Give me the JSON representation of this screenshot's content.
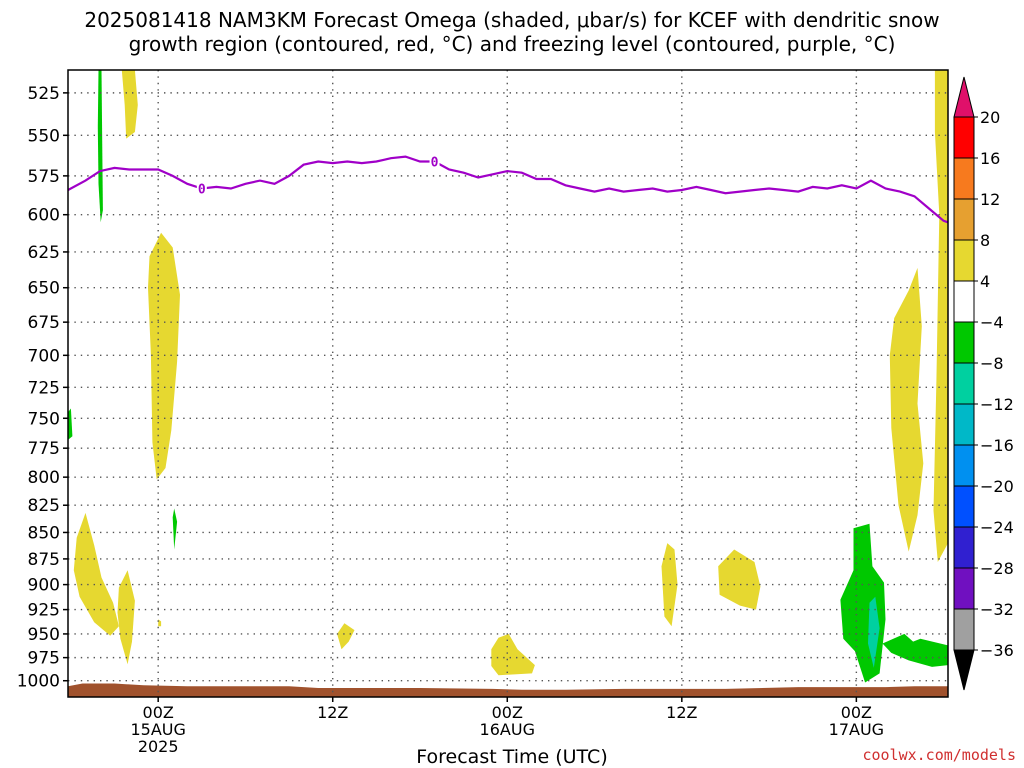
{
  "title": {
    "line1": "2025081418 NAM3KM Forecast Omega (shaded, μbar/s) for KCEF with dendritic snow",
    "line2": "growth region (contoured, red, °C) and freezing level (contoured, purple, °C)"
  },
  "credit": "coolwx.com/models",
  "chart_data": {
    "type": "heatmap",
    "title": "2025081418 NAM3KM Forecast Omega (shaded, μbar/s) for KCEF with dendritic snow growth region (contoured, red, °C) and freezing level (contoured, purple, °C)",
    "xlabel": "Forecast Time (UTC)",
    "ylabel": "",
    "x_ticks": [
      {
        "hour": 6,
        "lines": [
          "00Z",
          "15AUG",
          "2025"
        ]
      },
      {
        "hour": 18,
        "lines": [
          "12Z"
        ]
      },
      {
        "hour": 30,
        "lines": [
          "00Z",
          "16AUG"
        ]
      },
      {
        "hour": 42,
        "lines": [
          "12Z"
        ]
      },
      {
        "hour": 54,
        "lines": [
          "00Z",
          "17AUG"
        ]
      }
    ],
    "xlim": [
      -0.2,
      60.3
    ],
    "y_ticks": [
      525,
      550,
      575,
      600,
      625,
      650,
      675,
      700,
      725,
      750,
      775,
      800,
      825,
      850,
      875,
      900,
      925,
      950,
      975,
      1000
    ],
    "ylim": [
      512,
      1018
    ],
    "y_scale": "log",
    "grid": true,
    "colorbar": {
      "levels": [
        20,
        16,
        12,
        8,
        4,
        -4,
        -8,
        -12,
        -16,
        -20,
        -24,
        -28,
        -32,
        -36
      ],
      "colors": [
        "#ff0000",
        "#f77a1e",
        "#e6a030",
        "#e6d830",
        "#ffffff",
        "#00c800",
        "#00d0a0",
        "#00b8c8",
        "#0090f0",
        "#0050ff",
        "#3020d0",
        "#7010c0",
        "#a000b8",
        "#a0a0a0"
      ],
      "top_color": "#e0106a",
      "bottom_color": "#000000"
    },
    "freezing_level": {
      "label": "0",
      "color": "#a000c8",
      "points": [
        [
          -0.2,
          584
        ],
        [
          1,
          578
        ],
        [
          2,
          572
        ],
        [
          3,
          570
        ],
        [
          4,
          571
        ],
        [
          5,
          571
        ],
        [
          6,
          571
        ],
        [
          7,
          575
        ],
        [
          8,
          580
        ],
        [
          9,
          583
        ],
        [
          10,
          582
        ],
        [
          11,
          583
        ],
        [
          12,
          580
        ],
        [
          13,
          578
        ],
        [
          14,
          580
        ],
        [
          15,
          575
        ],
        [
          16,
          568
        ],
        [
          17,
          566
        ],
        [
          18,
          567
        ],
        [
          19,
          566
        ],
        [
          20,
          567
        ],
        [
          21,
          566
        ],
        [
          22,
          564
        ],
        [
          23,
          563
        ],
        [
          24,
          566
        ],
        [
          25,
          566
        ],
        [
          26,
          571
        ],
        [
          27,
          573
        ],
        [
          28,
          576
        ],
        [
          29,
          574
        ],
        [
          30,
          572
        ],
        [
          31,
          573
        ],
        [
          32,
          577
        ],
        [
          33,
          577
        ],
        [
          34,
          581
        ],
        [
          35,
          583
        ],
        [
          36,
          585
        ],
        [
          37,
          583
        ],
        [
          38,
          585
        ],
        [
          39,
          584
        ],
        [
          40,
          583
        ],
        [
          41,
          585
        ],
        [
          42,
          584
        ],
        [
          43,
          582
        ],
        [
          44,
          584
        ],
        [
          45,
          586
        ],
        [
          46,
          585
        ],
        [
          47,
          584
        ],
        [
          48,
          583
        ],
        [
          49,
          584
        ],
        [
          50,
          585
        ],
        [
          51,
          582
        ],
        [
          52,
          583
        ],
        [
          53,
          581
        ],
        [
          54,
          583
        ],
        [
          55,
          578
        ],
        [
          56,
          583
        ],
        [
          57,
          585
        ],
        [
          58,
          588
        ],
        [
          59,
          596
        ],
        [
          60,
          604
        ],
        [
          60.3,
          605
        ]
      ],
      "label_positions": [
        [
          9,
          583
        ],
        [
          25,
          566
        ]
      ]
    },
    "omega_regions": [
      {
        "category": "4 to 8",
        "color": "#e6d830",
        "points": [
          [
            3.5,
            512
          ],
          [
            4.4,
            512
          ],
          [
            4.6,
            532
          ],
          [
            4.4,
            548
          ],
          [
            3.8,
            552
          ],
          [
            3.7,
            532
          ]
        ]
      },
      {
        "category": "4 to 8",
        "color": "#e6d830",
        "points": [
          [
            5.4,
            628
          ],
          [
            6.2,
            612
          ],
          [
            7.0,
            622
          ],
          [
            7.5,
            655
          ],
          [
            7.3,
            705
          ],
          [
            6.9,
            760
          ],
          [
            6.5,
            792
          ],
          [
            5.9,
            802
          ],
          [
            5.6,
            770
          ],
          [
            5.5,
            700
          ],
          [
            5.3,
            650
          ]
        ]
      },
      {
        "category": "4 to 8",
        "color": "#e6d830",
        "points": [
          [
            0.4,
            855
          ],
          [
            1.0,
            832
          ],
          [
            1.6,
            862
          ],
          [
            2.1,
            893
          ],
          [
            2.9,
            918
          ],
          [
            3.3,
            942
          ],
          [
            2.7,
            952
          ],
          [
            1.6,
            938
          ],
          [
            0.6,
            912
          ],
          [
            0.2,
            886
          ]
        ]
      },
      {
        "category": "4 to 8",
        "color": "#e6d830",
        "points": [
          [
            3.3,
            903
          ],
          [
            3.9,
            886
          ],
          [
            4.4,
            916
          ],
          [
            4.2,
            958
          ],
          [
            3.9,
            982
          ],
          [
            3.4,
            955
          ],
          [
            3.2,
            928
          ]
        ]
      },
      {
        "category": "4 to 8",
        "color": "#e6d830",
        "points": [
          [
            6.0,
            935
          ],
          [
            6.2,
            937
          ],
          [
            6.2,
            942
          ],
          [
            6.0,
            942
          ]
        ]
      },
      {
        "category": "4 to 8",
        "color": "#e6d830",
        "points": [
          [
            18.3,
            950
          ],
          [
            18.8,
            939
          ],
          [
            19.5,
            946
          ],
          [
            19.1,
            958
          ],
          [
            18.6,
            966
          ]
        ]
      },
      {
        "category": "4 to 8",
        "color": "#e6d830",
        "points": [
          [
            28.9,
            966
          ],
          [
            29.4,
            954
          ],
          [
            30.1,
            950
          ],
          [
            30.7,
            966
          ],
          [
            31.9,
            983
          ],
          [
            31.7,
            992
          ],
          [
            29.4,
            994
          ],
          [
            28.9,
            984
          ]
        ]
      },
      {
        "category": "4 to 8",
        "color": "#e6d830",
        "points": [
          [
            40.6,
            882
          ],
          [
            41.0,
            860
          ],
          [
            41.5,
            866
          ],
          [
            41.7,
            900
          ],
          [
            41.3,
            942
          ],
          [
            40.8,
            932
          ]
        ]
      },
      {
        "category": "4 to 8",
        "color": "#e6d830",
        "points": [
          [
            44.5,
            882
          ],
          [
            45.6,
            866
          ],
          [
            47.0,
            878
          ],
          [
            47.4,
            902
          ],
          [
            47.1,
            925
          ],
          [
            46.0,
            921
          ],
          [
            44.6,
            910
          ]
        ]
      },
      {
        "category": "4 to 8",
        "color": "#e6d830",
        "points": [
          [
            56.6,
            672
          ],
          [
            57.6,
            652
          ],
          [
            58.2,
            636
          ],
          [
            58.5,
            678
          ],
          [
            58.2,
            738
          ],
          [
            58.6,
            788
          ],
          [
            58.2,
            834
          ],
          [
            57.6,
            868
          ],
          [
            56.9,
            825
          ],
          [
            56.4,
            758
          ],
          [
            56.3,
            700
          ]
        ]
      },
      {
        "category": "4 to 8",
        "color": "#e6d830",
        "points": [
          [
            59.4,
            512
          ],
          [
            60.3,
            512
          ],
          [
            60.3,
            860
          ],
          [
            59.6,
            878
          ],
          [
            59.3,
            830
          ],
          [
            59.5,
            720
          ],
          [
            59.7,
            600
          ],
          [
            59.4,
            548
          ]
        ]
      },
      {
        "category": "-4 to -8",
        "color": "#00c800",
        "points": [
          [
            1.9,
            512
          ],
          [
            2.1,
            512
          ],
          [
            2.2,
            597
          ],
          [
            2.05,
            605
          ],
          [
            1.9,
            580
          ],
          [
            1.85,
            545
          ]
        ]
      },
      {
        "category": "-4 to -8",
        "color": "#00c800",
        "points": [
          [
            -0.2,
            745
          ],
          [
            0.0,
            742
          ],
          [
            0.1,
            765
          ],
          [
            -0.2,
            768
          ]
        ]
      },
      {
        "category": "-4 to -8",
        "color": "#00c800",
        "points": [
          [
            7.0,
            836
          ],
          [
            7.1,
            828
          ],
          [
            7.3,
            840
          ],
          [
            7.1,
            866
          ]
        ]
      },
      {
        "category": "-4 to -8",
        "color": "#00c800",
        "points": [
          [
            53.8,
            846
          ],
          [
            54.9,
            842
          ],
          [
            55.1,
            882
          ],
          [
            55.9,
            898
          ],
          [
            56.0,
            935
          ],
          [
            55.6,
            992
          ],
          [
            54.6,
            1002
          ],
          [
            53.9,
            968
          ],
          [
            53.1,
            955
          ],
          [
            52.9,
            915
          ],
          [
            53.8,
            886
          ]
        ]
      },
      {
        "category": "-4 to -8",
        "color": "#00c800",
        "points": [
          [
            55.8,
            960
          ],
          [
            57.3,
            950
          ],
          [
            57.9,
            958
          ],
          [
            58.4,
            955
          ],
          [
            60.3,
            962
          ],
          [
            60.3,
            983
          ],
          [
            59.2,
            985
          ],
          [
            57.6,
            978
          ],
          [
            56.4,
            970
          ]
        ]
      },
      {
        "category": "-8 to -12",
        "color": "#00d0a0",
        "points": [
          [
            54.9,
            918
          ],
          [
            55.3,
            912
          ],
          [
            55.6,
            944
          ],
          [
            55.2,
            986
          ],
          [
            54.8,
            960
          ]
        ]
      }
    ],
    "surface_fill": {
      "color": "#a0522d",
      "points": [
        [
          -0.2,
          1006
        ],
        [
          0.8,
          1003
        ],
        [
          1.8,
          1003
        ],
        [
          3,
          1003
        ],
        [
          5,
          1005
        ],
        [
          8,
          1006
        ],
        [
          15,
          1006
        ],
        [
          17,
          1008
        ],
        [
          24,
          1008
        ],
        [
          29,
          1009
        ],
        [
          31,
          1010
        ],
        [
          34,
          1010
        ],
        [
          38,
          1009
        ],
        [
          45,
          1009
        ],
        [
          50,
          1007
        ],
        [
          56,
          1007
        ],
        [
          58,
          1006
        ],
        [
          60.3,
          1006
        ]
      ]
    }
  }
}
